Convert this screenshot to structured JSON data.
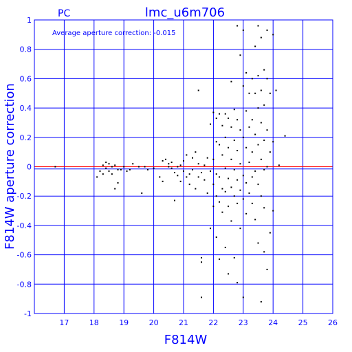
{
  "chart_data": {
    "type": "scatter",
    "title": "lmc_u6m706",
    "corner_label": "PC",
    "annotation": "Average aperture correction: -0.015",
    "xlabel": "F814W",
    "ylabel": "F814W aperture correction",
    "xlim": [
      16,
      26
    ],
    "ylim": [
      -1,
      1
    ],
    "xticks": [
      "17",
      "18",
      "19",
      "20",
      "21",
      "22",
      "23",
      "24",
      "25",
      "26"
    ],
    "yticks": [
      "-1",
      "-0.8",
      "-0.6",
      "-0.4",
      "-0.2",
      "0",
      "0.2",
      "0.4",
      "0.6",
      "0.8",
      "1"
    ],
    "grid": true,
    "zero_line_color": "#ff0000",
    "average_line_value": -0.015,
    "average_line_color": "#0000ff",
    "axis_color": "#0000ff",
    "point_color": "#000000",
    "points": [
      [
        16.7,
        0.0
      ],
      [
        18.1,
        -0.07
      ],
      [
        18.2,
        -0.03
      ],
      [
        18.3,
        -0.05
      ],
      [
        18.3,
        0.01
      ],
      [
        18.4,
        0.03
      ],
      [
        18.4,
        -0.01
      ],
      [
        18.5,
        0.02
      ],
      [
        18.5,
        -0.03
      ],
      [
        18.6,
        0.0
      ],
      [
        18.6,
        -0.05
      ],
      [
        18.7,
        -0.15
      ],
      [
        18.7,
        0.01
      ],
      [
        18.8,
        -0.02
      ],
      [
        18.8,
        -0.11
      ],
      [
        18.9,
        -0.02
      ],
      [
        19.0,
        0.0
      ],
      [
        19.1,
        -0.03
      ],
      [
        19.2,
        -0.02
      ],
      [
        19.3,
        0.02
      ],
      [
        19.5,
        0.0
      ],
      [
        19.6,
        -0.18
      ],
      [
        19.7,
        0.0
      ],
      [
        19.8,
        -0.02
      ],
      [
        20.0,
        -0.01
      ],
      [
        20.2,
        -0.07
      ],
      [
        20.3,
        -0.1
      ],
      [
        20.3,
        0.04
      ],
      [
        20.4,
        0.05
      ],
      [
        20.5,
        0.0
      ],
      [
        20.5,
        0.02
      ],
      [
        20.6,
        -0.01
      ],
      [
        20.6,
        0.03
      ],
      [
        20.7,
        -0.04
      ],
      [
        20.7,
        -0.23
      ],
      [
        20.8,
        0.0
      ],
      [
        20.8,
        -0.06
      ],
      [
        20.9,
        0.01
      ],
      [
        20.9,
        -0.1
      ],
      [
        21.0,
        -0.03
      ],
      [
        21.0,
        0.04
      ],
      [
        21.1,
        -0.07
      ],
      [
        21.1,
        0.08
      ],
      [
        21.2,
        -0.12
      ],
      [
        21.2,
        -0.05
      ],
      [
        21.3,
        0.06
      ],
      [
        21.3,
        -0.02
      ],
      [
        21.4,
        -0.15
      ],
      [
        21.4,
        0.1
      ],
      [
        21.5,
        -0.07
      ],
      [
        21.5,
        0.02
      ],
      [
        21.5,
        0.52
      ],
      [
        21.6,
        -0.65
      ],
      [
        21.6,
        -0.62
      ],
      [
        21.6,
        -0.04
      ],
      [
        21.6,
        -0.89
      ],
      [
        21.7,
        -0.09
      ],
      [
        21.7,
        0.01
      ],
      [
        21.8,
        -0.18
      ],
      [
        21.8,
        0.06
      ],
      [
        21.9,
        -0.42
      ],
      [
        21.9,
        -0.03
      ],
      [
        21.9,
        0.29
      ],
      [
        22.0,
        0.37
      ],
      [
        22.0,
        0.05
      ],
      [
        22.0,
        -0.12
      ],
      [
        22.0,
        -0.27
      ],
      [
        22.1,
        0.33
      ],
      [
        22.1,
        0.17
      ],
      [
        22.1,
        -0.05
      ],
      [
        22.1,
        -0.2
      ],
      [
        22.1,
        -0.48
      ],
      [
        22.2,
        0.36
      ],
      [
        22.2,
        0.15
      ],
      [
        22.2,
        -0.07
      ],
      [
        22.2,
        -0.24
      ],
      [
        22.2,
        -0.63
      ],
      [
        22.3,
        0.28
      ],
      [
        22.3,
        0.08
      ],
      [
        22.3,
        -0.15
      ],
      [
        22.3,
        -0.31
      ],
      [
        22.4,
        0.36
      ],
      [
        22.4,
        0.2
      ],
      [
        22.4,
        -0.01
      ],
      [
        22.4,
        -0.17
      ],
      [
        22.4,
        -0.55
      ],
      [
        22.5,
        0.33
      ],
      [
        22.5,
        0.13
      ],
      [
        22.5,
        -0.08
      ],
      [
        22.5,
        -0.27
      ],
      [
        22.5,
        -0.73
      ],
      [
        22.6,
        0.58
      ],
      [
        22.6,
        0.27
      ],
      [
        22.6,
        0.05
      ],
      [
        22.6,
        -0.14
      ],
      [
        22.6,
        -0.37
      ],
      [
        22.7,
        0.39
      ],
      [
        22.7,
        0.18
      ],
      [
        22.7,
        -0.02
      ],
      [
        22.7,
        -0.2
      ],
      [
        22.7,
        -0.62
      ],
      [
        22.8,
        0.96
      ],
      [
        22.8,
        0.32
      ],
      [
        22.8,
        0.11
      ],
      [
        22.8,
        -0.09
      ],
      [
        22.8,
        -0.25
      ],
      [
        22.8,
        -0.79
      ],
      [
        22.9,
        0.76
      ],
      [
        22.9,
        0.25
      ],
      [
        22.9,
        0.02
      ],
      [
        22.9,
        -0.16
      ],
      [
        22.9,
        -0.42
      ],
      [
        23.0,
        0.93
      ],
      [
        23.0,
        0.55
      ],
      [
        23.0,
        0.2
      ],
      [
        23.0,
        -0.06
      ],
      [
        23.0,
        -0.22
      ],
      [
        23.0,
        -0.89
      ],
      [
        23.1,
        0.64
      ],
      [
        23.1,
        0.38
      ],
      [
        23.1,
        0.13
      ],
      [
        23.1,
        -0.11
      ],
      [
        23.1,
        -0.32
      ],
      [
        23.2,
        0.5
      ],
      [
        23.2,
        0.27
      ],
      [
        23.2,
        0.03
      ],
      [
        23.2,
        -0.18
      ],
      [
        23.3,
        0.6
      ],
      [
        23.3,
        0.32
      ],
      [
        23.3,
        0.1
      ],
      [
        23.3,
        -0.07
      ],
      [
        23.3,
        -0.25
      ],
      [
        23.4,
        0.82
      ],
      [
        23.4,
        0.5
      ],
      [
        23.4,
        0.22
      ],
      [
        23.4,
        -0.03
      ],
      [
        23.4,
        -0.36
      ],
      [
        23.5,
        0.96
      ],
      [
        23.5,
        0.62
      ],
      [
        23.5,
        0.4
      ],
      [
        23.5,
        0.15
      ],
      [
        23.5,
        -0.12
      ],
      [
        23.5,
        -0.52
      ],
      [
        23.6,
        0.88
      ],
      [
        23.6,
        0.52
      ],
      [
        23.6,
        0.3
      ],
      [
        23.6,
        0.05
      ],
      [
        23.6,
        -0.2
      ],
      [
        23.6,
        -0.92
      ],
      [
        23.7,
        0.66
      ],
      [
        23.7,
        0.42
      ],
      [
        23.7,
        0.18
      ],
      [
        23.7,
        -0.02
      ],
      [
        23.7,
        -0.28
      ],
      [
        23.7,
        -0.58
      ],
      [
        23.8,
        0.93
      ],
      [
        23.8,
        0.6
      ],
      [
        23.8,
        0.25
      ],
      [
        23.8,
        0.0
      ],
      [
        23.8,
        -0.7
      ],
      [
        23.9,
        0.5
      ],
      [
        23.9,
        0.1
      ],
      [
        23.9,
        -0.45
      ],
      [
        24.0,
        0.9
      ],
      [
        24.0,
        0.17
      ],
      [
        24.0,
        -0.3
      ],
      [
        24.1,
        0.52
      ],
      [
        24.2,
        0.01
      ],
      [
        24.4,
        0.21
      ]
    ]
  }
}
